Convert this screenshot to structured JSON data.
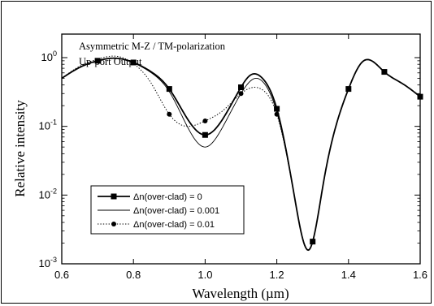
{
  "chart_data": {
    "type": "line",
    "title": "",
    "xlabel": "Wavelength (µm)",
    "ylabel": "Relative intensity",
    "xlim": [
      0.6,
      1.6
    ],
    "ylim": [
      0.001,
      2.2
    ],
    "yscale": "log",
    "xticks": [
      "0.6",
      "0.8",
      "1.0",
      "1.2",
      "1.4",
      "1.6"
    ],
    "yticks": [
      {
        "value": 1,
        "base": "10",
        "exp": "0"
      },
      {
        "value": 0.1,
        "base": "10",
        "exp": "-1"
      },
      {
        "value": 0.01,
        "base": "10",
        "exp": "-2"
      },
      {
        "value": 0.001,
        "base": "10",
        "exp": "-3"
      }
    ],
    "annotations": [
      "Asymmetric M-Z / TM-polarization",
      "Up-port Output"
    ],
    "legend_position": "lower-left",
    "series": [
      {
        "name": "Δn(over-clad) = 0",
        "style": "solid-square",
        "markers_x": [
          0.7,
          0.8,
          0.9,
          1.0,
          1.1,
          1.2,
          1.3,
          1.4,
          1.5,
          1.6
        ],
        "x": [
          0.6,
          0.65,
          0.7,
          0.75,
          0.8,
          0.85,
          0.9,
          0.95,
          1.0,
          1.05,
          1.1,
          1.125,
          1.14,
          1.16,
          1.2,
          1.25,
          1.29,
          1.33,
          1.4,
          1.44,
          1.5,
          1.55,
          1.6
        ],
        "y": [
          0.5,
          0.72,
          0.9,
          0.98,
          0.85,
          0.62,
          0.35,
          0.13,
          0.075,
          0.13,
          0.37,
          0.55,
          0.58,
          0.5,
          0.18,
          0.009,
          0.0016,
          0.015,
          0.35,
          0.88,
          0.62,
          0.42,
          0.27
        ]
      },
      {
        "name": "Δn(over-clad) = 0.001",
        "style": "thin",
        "markers_x": [],
        "x": [
          0.6,
          0.65,
          0.7,
          0.75,
          0.8,
          0.85,
          0.9,
          0.95,
          1.0,
          1.05,
          1.1,
          1.125,
          1.14,
          1.16,
          1.2,
          1.25,
          1.29,
          1.33,
          1.4,
          1.44,
          1.5,
          1.55,
          1.6
        ],
        "y": [
          0.5,
          0.72,
          0.9,
          0.98,
          0.84,
          0.6,
          0.32,
          0.1,
          0.05,
          0.1,
          0.3,
          0.45,
          0.5,
          0.45,
          0.16,
          0.009,
          0.0016,
          0.015,
          0.35,
          0.88,
          0.62,
          0.42,
          0.27
        ]
      },
      {
        "name": "Δn(over-clad) = 0.01",
        "style": "dotted-circle",
        "markers_x": [
          0.9,
          1.0,
          1.1,
          1.2
        ],
        "x": [
          0.6,
          0.65,
          0.7,
          0.75,
          0.8,
          0.85,
          0.9,
          0.95,
          1.0,
          1.05,
          1.1,
          1.14,
          1.16,
          1.2,
          1.25,
          1.29,
          1.33,
          1.4,
          1.44,
          1.5,
          1.55,
          1.6
        ],
        "y": [
          0.5,
          0.75,
          0.95,
          1.05,
          0.82,
          0.42,
          0.15,
          0.1,
          0.12,
          0.17,
          0.3,
          0.37,
          0.34,
          0.15,
          0.009,
          0.0016,
          0.015,
          0.35,
          0.88,
          0.62,
          0.42,
          0.27
        ]
      }
    ]
  }
}
